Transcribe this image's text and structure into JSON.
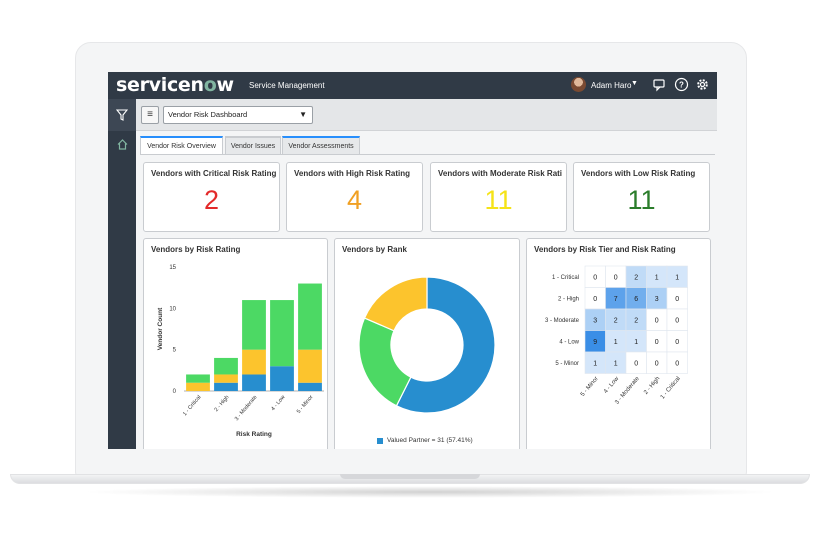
{
  "header": {
    "logo_prefix": "service",
    "logo_o": "o",
    "logo_suffix": "w",
    "logo_n": "n",
    "app_name": "Service Management",
    "user_name": "Adam Haro"
  },
  "toolbar": {
    "dashboard_value": "Vendor Risk Dashboard"
  },
  "tabs": [
    {
      "label": "Vendor Risk Overview"
    },
    {
      "label": "Vendor Issues"
    },
    {
      "label": "Vendor Assessments"
    }
  ],
  "kpis": [
    {
      "title": "Vendors with Critical Risk Rating",
      "value": "2",
      "color": "#e32a2a"
    },
    {
      "title": "Vendors with High Risk Rating",
      "value": "4",
      "color": "#f0a023"
    },
    {
      "title": "Vendors with Moderate Risk Rati",
      "value": "11",
      "color": "#f5e318"
    },
    {
      "title": "Vendors with Low Risk Rating",
      "value": "11",
      "color": "#2b7d2b"
    }
  ],
  "charts": {
    "rating_title": "Vendors by Risk Rating",
    "rank_title": "Vendors by Rank",
    "tier_title": "Vendors by Risk Tier and Risk Rating",
    "rank_legend": "Valued Partner = 31 (57.41%)"
  },
  "chart_data": [
    {
      "type": "bar",
      "stacked": true,
      "title": "Vendors by Risk Rating",
      "xlabel": "Risk Rating",
      "ylabel": "Vendor Count",
      "categories": [
        "1 - Critical",
        "2 - High",
        "3 - Moderate",
        "4 - Low",
        "5 - Minor"
      ],
      "yticks": [
        "0",
        "5",
        "10",
        "15"
      ],
      "ylim": [
        0,
        15
      ],
      "series": [
        {
          "color": "#278ecf",
          "values": [
            0,
            1,
            2,
            3,
            1
          ]
        },
        {
          "color": "#fcc42d",
          "values": [
            1,
            1,
            3,
            0,
            4
          ]
        },
        {
          "color": "#4cd964",
          "values": [
            1,
            2,
            6,
            8,
            8
          ]
        }
      ]
    },
    {
      "type": "pie",
      "donut": true,
      "title": "Vendors by Rank",
      "slices": [
        {
          "label": "Valued Partner",
          "value": 31,
          "color": "#278ecf"
        },
        {
          "value": 13,
          "color": "#4cd964"
        },
        {
          "value": 10,
          "color": "#fcc42d"
        }
      ]
    },
    {
      "type": "heatmap",
      "title": "Vendors by Risk Tier and Risk Rating",
      "rows": [
        "1 - Critical",
        "2 - High",
        "3 - Moderate",
        "4 - Low",
        "5 - Minor"
      ],
      "cols": [
        "5 - Minor",
        "4 - Low",
        "3 - Moderate",
        "2 - High",
        "1 - Critical"
      ],
      "values": [
        [
          0,
          0,
          2,
          1,
          1
        ],
        [
          0,
          7,
          6,
          3,
          0
        ],
        [
          3,
          2,
          2,
          0,
          0
        ],
        [
          9,
          1,
          1,
          0,
          0
        ],
        [
          1,
          1,
          0,
          0,
          0
        ]
      ]
    }
  ]
}
